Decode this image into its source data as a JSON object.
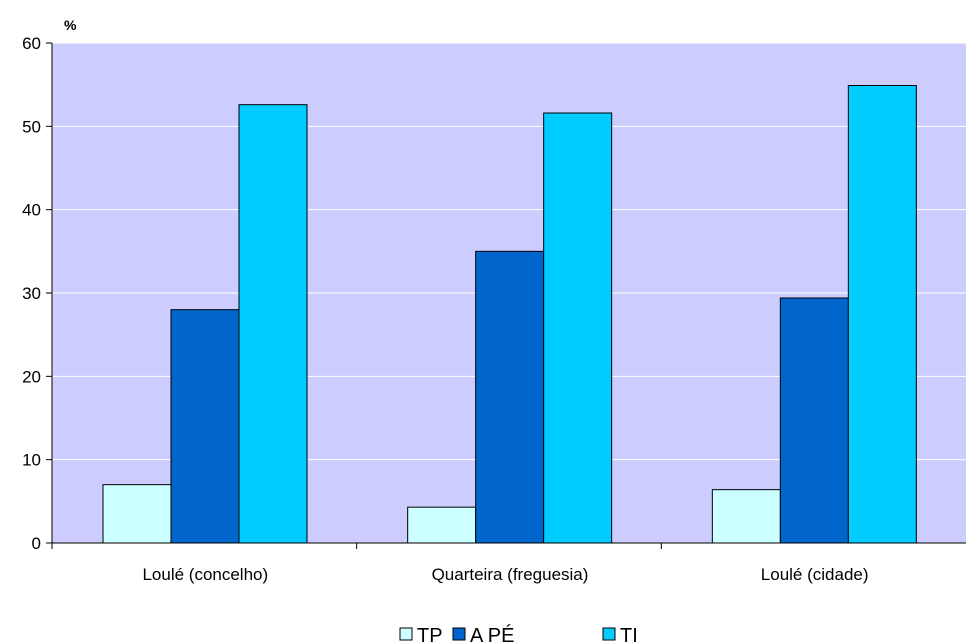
{
  "chart_data": {
    "type": "bar",
    "unit_label": "%",
    "categories": [
      "Loulé (concelho)",
      "Quarteira (freguesia)",
      "Loulé (cidade)"
    ],
    "series": [
      {
        "name": "TP",
        "color": "#ccffff",
        "values": [
          7.0,
          4.3,
          6.4
        ]
      },
      {
        "name": "A PÉ",
        "color": "#0066cc",
        "values": [
          28.0,
          35.0,
          29.4
        ]
      },
      {
        "name": "TI",
        "color": "#00ccff",
        "values": [
          52.6,
          51.6,
          54.9
        ]
      }
    ],
    "ylim": [
      0,
      60
    ],
    "yticks": [
      0,
      10,
      20,
      30,
      40,
      50,
      60
    ],
    "plot_background": "#ccccff",
    "grid": true,
    "legend_position": "bottom"
  }
}
